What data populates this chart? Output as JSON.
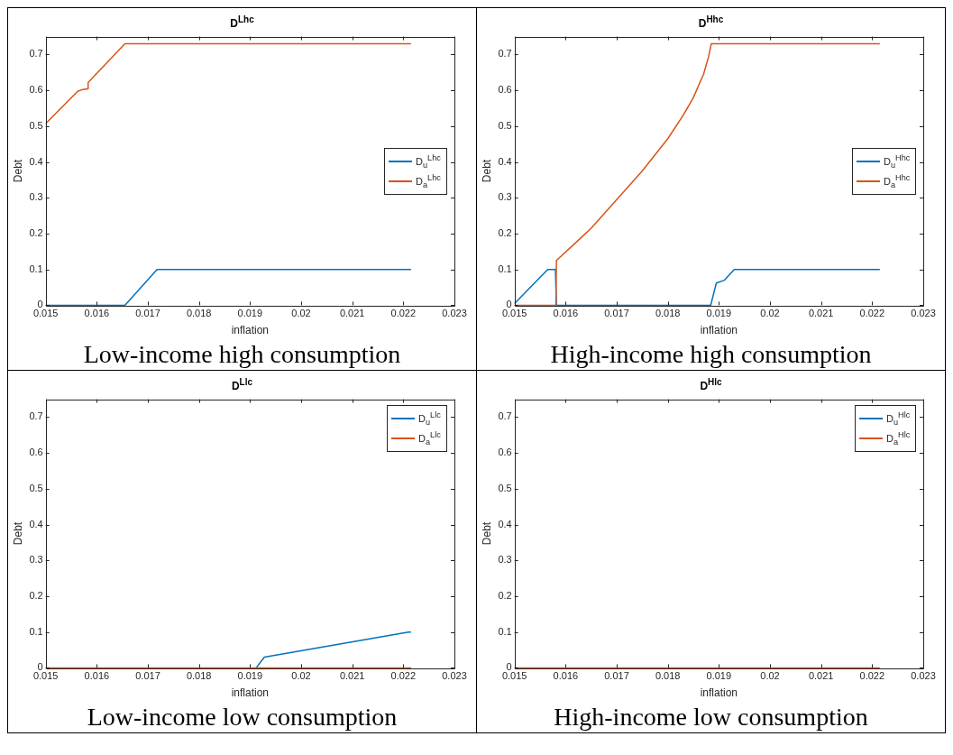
{
  "chart_data": [
    {
      "type": "line",
      "title": "D$^{Lhc}$",
      "xlabel": "inflation",
      "ylabel": "Debt",
      "xlim": [
        0.015,
        0.023
      ],
      "ylim": [
        0,
        0.75
      ],
      "xticks": [
        0.015,
        0.016,
        0.017,
        0.018,
        0.019,
        0.02,
        0.021,
        0.022,
        0.023
      ],
      "yticks": [
        0,
        0.1,
        0.2,
        0.3,
        0.4,
        0.5,
        0.6,
        0.7
      ],
      "legend": "right",
      "annotations": [
        "Low-income high consumption"
      ],
      "series": [
        {
          "name": "D$_{u}$$^{Lhc}$",
          "color": "#0072bd",
          "x": [
            0.015,
            0.01655,
            0.01718,
            0.02215
          ],
          "values": [
            0,
            0,
            0.1,
            0.1
          ]
        },
        {
          "name": "D$_{a}$$^{Lhc}$",
          "color": "#d95319",
          "x": [
            0.015,
            0.01563,
            0.01572,
            0.01582,
            0.01583,
            0.01655,
            0.02215
          ],
          "values": [
            0.507,
            0.598,
            0.602,
            0.604,
            0.622,
            0.73,
            0.73
          ]
        }
      ]
    },
    {
      "type": "line",
      "title": "D$^{Hhc}$",
      "xlabel": "inflation",
      "ylabel": "Debt",
      "xlim": [
        0.015,
        0.023
      ],
      "ylim": [
        0,
        0.75
      ],
      "xticks": [
        0.015,
        0.016,
        0.017,
        0.018,
        0.019,
        0.02,
        0.021,
        0.022,
        0.023
      ],
      "yticks": [
        0,
        0.1,
        0.2,
        0.3,
        0.4,
        0.5,
        0.6,
        0.7
      ],
      "legend": "right",
      "annotations": [
        "High-income high consumption"
      ],
      "series": [
        {
          "name": "D$_{u}$$^{Hhc}$",
          "color": "#0072bd",
          "x": [
            0.015,
            0.01565,
            0.0158,
            0.01582,
            0.01884,
            0.01895,
            0.01911,
            0.0193,
            0.02215
          ],
          "values": [
            0.005,
            0.1,
            0.1,
            0,
            0,
            0.062,
            0.07,
            0.1,
            0.1
          ]
        },
        {
          "name": "D$_{a}$$^{Hhc}$",
          "color": "#d95319",
          "x": [
            0.015,
            0.01581,
            0.01582,
            0.0162,
            0.0165,
            0.017,
            0.0175,
            0.018,
            0.0183,
            0.0185,
            0.0187,
            0.0188,
            0.01885,
            0.02215
          ],
          "values": [
            0,
            0,
            0.125,
            0.175,
            0.215,
            0.295,
            0.375,
            0.465,
            0.53,
            0.58,
            0.645,
            0.695,
            0.73,
            0.73
          ]
        }
      ]
    },
    {
      "type": "line",
      "title": "D$^{Llc}$",
      "xlabel": "inflation",
      "ylabel": "Debt",
      "xlim": [
        0.015,
        0.023
      ],
      "ylim": [
        0,
        0.75
      ],
      "xticks": [
        0.015,
        0.016,
        0.017,
        0.018,
        0.019,
        0.02,
        0.021,
        0.022,
        0.023
      ],
      "yticks": [
        0,
        0.1,
        0.2,
        0.3,
        0.4,
        0.5,
        0.6,
        0.7
      ],
      "legend": "top right",
      "annotations": [
        "Low-income low consumption"
      ],
      "series": [
        {
          "name": "D$_{u}$$^{Llc}$",
          "color": "#0072bd",
          "x": [
            0.01912,
            0.01928,
            0.0221,
            0.02215
          ],
          "values": [
            0,
            0.03,
            0.1,
            0.1
          ]
        },
        {
          "name": "D$_{a}$$^{Llc}$",
          "color": "#d95319",
          "x": [
            0.015,
            0.02215
          ],
          "values": [
            0,
            0
          ]
        }
      ]
    },
    {
      "type": "line",
      "title": "D$^{Hlc}$",
      "xlabel": "inflation",
      "ylabel": "Debt",
      "xlim": [
        0.015,
        0.023
      ],
      "ylim": [
        0,
        0.75
      ],
      "xticks": [
        0.015,
        0.016,
        0.017,
        0.018,
        0.019,
        0.02,
        0.021,
        0.022,
        0.023
      ],
      "yticks": [
        0,
        0.1,
        0.2,
        0.3,
        0.4,
        0.5,
        0.6,
        0.7
      ],
      "legend": "top right",
      "annotations": [
        "High-income low consumption"
      ],
      "series": [
        {
          "name": "D$_{u}$$^{Hlc}$",
          "color": "#0072bd"
        },
        {
          "name": "D$_{a}$$^{Hlc}$",
          "color": "#d95319",
          "x": [
            0.015,
            0.02215
          ],
          "values": [
            0,
            0
          ]
        }
      ]
    }
  ]
}
